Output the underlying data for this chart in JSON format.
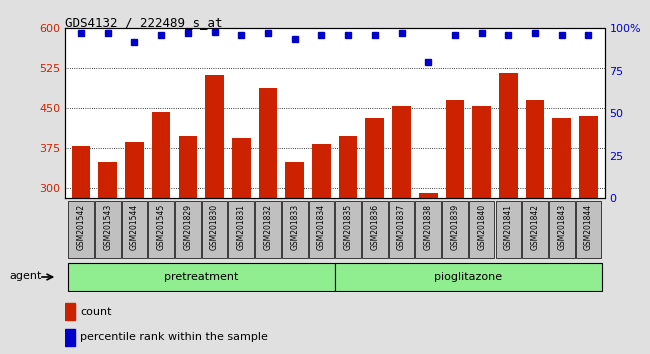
{
  "title": "GDS4132 / 222489_s_at",
  "categories": [
    "GSM201542",
    "GSM201543",
    "GSM201544",
    "GSM201545",
    "GSM201829",
    "GSM201830",
    "GSM201831",
    "GSM201832",
    "GSM201833",
    "GSM201834",
    "GSM201835",
    "GSM201836",
    "GSM201837",
    "GSM201838",
    "GSM201839",
    "GSM201840",
    "GSM201841",
    "GSM201842",
    "GSM201843",
    "GSM201844"
  ],
  "bar_values": [
    378,
    348,
    385,
    443,
    398,
    513,
    393,
    487,
    348,
    383,
    397,
    432,
    453,
    290,
    465,
    453,
    515,
    465,
    432,
    435
  ],
  "percentile_values": [
    97,
    97,
    92,
    96,
    97,
    98,
    96,
    97,
    94,
    96,
    96,
    96,
    97,
    80,
    96,
    97,
    96,
    97,
    96,
    96
  ],
  "bar_color": "#cc2200",
  "dot_color": "#0000cc",
  "ylim_left": [
    280,
    600
  ],
  "ylim_right": [
    0,
    100
  ],
  "yticks_left": [
    300,
    375,
    450,
    525,
    600
  ],
  "yticks_right": [
    0,
    25,
    50,
    75,
    100
  ],
  "group1_label": "pretreatment",
  "group2_label": "pioglitazone",
  "agent_label": "agent",
  "legend_count": "count",
  "legend_percentile": "percentile rank within the sample",
  "bg_color": "#e0e0e0",
  "plot_bg_color": "#ffffff",
  "group_color": "#90ee90",
  "right_axis_label_color": "#0000cc",
  "left_axis_label_color": "#cc2200",
  "xtick_bg_color": "#c0c0c0"
}
